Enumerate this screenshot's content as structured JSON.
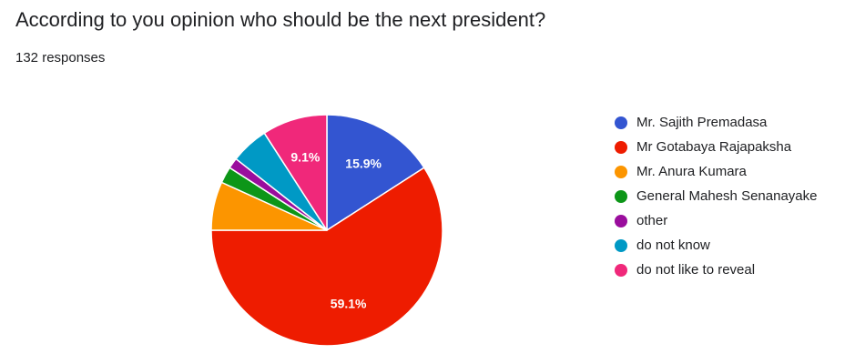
{
  "header": {
    "question": "According to you opinion who should be the next president?",
    "responses": "132 responses"
  },
  "chart_data": {
    "type": "pie",
    "total_responses": 132,
    "start_angle_deg": 0,
    "direction": "clockwise",
    "legend_position": "right",
    "slices": [
      {
        "label": "Mr. Sajith Premadasa",
        "value": 15.9,
        "color": "#3355d1",
        "data_label": "15.9%"
      },
      {
        "label": "Mr Gotabaya Rajapaksha",
        "value": 59.1,
        "color": "#ee1c00",
        "data_label": "59.1%"
      },
      {
        "label": "Mr. Anura Kumara",
        "value": 6.8,
        "color": "#fc9500",
        "data_label": ""
      },
      {
        "label": "General Mahesh Senanayake",
        "value": 2.3,
        "color": "#0d9618",
        "data_label": ""
      },
      {
        "label": "other",
        "value": 1.5,
        "color": "#9a0d9d",
        "data_label": ""
      },
      {
        "label": "do not know",
        "value": 5.3,
        "color": "#0099c5",
        "data_label": ""
      },
      {
        "label": "do not like to reveal",
        "value": 9.1,
        "color": "#f0287a",
        "data_label": "9.1%"
      }
    ]
  }
}
